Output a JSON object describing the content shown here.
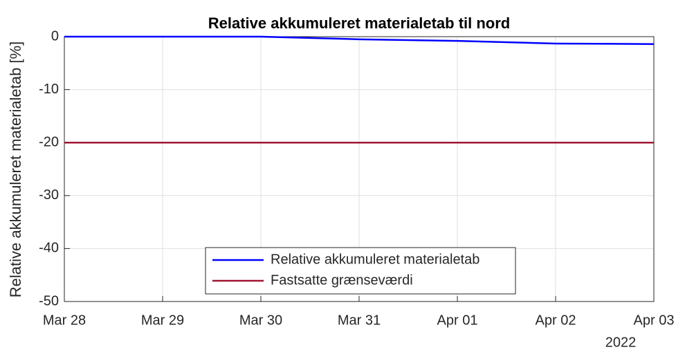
{
  "chart_data": {
    "type": "line",
    "title": "Relative akkumuleret materialetab til nord",
    "ylabel": "Relative akkumuleret materialetab [%]",
    "x": [
      "2022-03-28",
      "2022-03-29",
      "2022-03-30",
      "2022-03-31",
      "2022-04-01",
      "2022-04-02",
      "2022-04-03"
    ],
    "series": [
      {
        "name": "Relative akkumuleret materialetab",
        "color": "#0000ff",
        "values": [
          0,
          0,
          0,
          -0.5,
          -0.8,
          -1.3,
          -1.4
        ]
      },
      {
        "name": "Fastsatte grænseværdi",
        "color": "#a2142f",
        "values": [
          -20,
          -20,
          -20,
          -20,
          -20,
          -20,
          -20
        ]
      }
    ],
    "xlim": [
      "2022-03-28",
      "2022-04-03"
    ],
    "xticks": [
      {
        "value": "2022-03-28",
        "label": "Mar 28"
      },
      {
        "value": "2022-03-29",
        "label": "Mar 29"
      },
      {
        "value": "2022-03-30",
        "label": "Mar 30"
      },
      {
        "value": "2022-03-31",
        "label": "Mar 31"
      },
      {
        "value": "2022-04-01",
        "label": "Apr 01"
      },
      {
        "value": "2022-04-02",
        "label": "Apr 02"
      },
      {
        "value": "2022-04-03",
        "label": "Apr 03"
      }
    ],
    "x_year_label": "2022",
    "ylim": [
      -50,
      0
    ],
    "yticks": [
      -50,
      -40,
      -30,
      -20,
      -10,
      0
    ],
    "grid": true,
    "legend": "bottom"
  }
}
